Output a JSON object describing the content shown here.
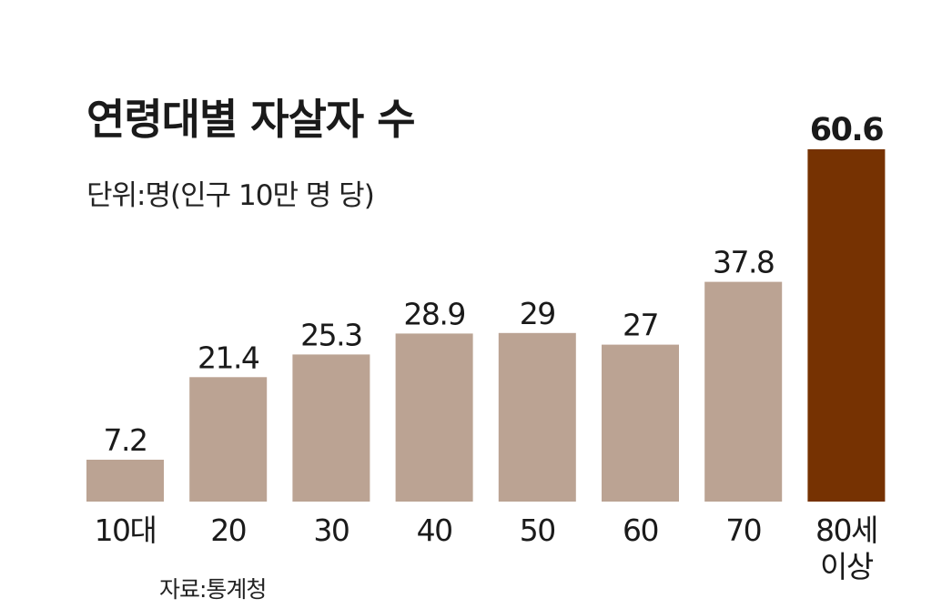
{
  "chart_data": {
    "type": "bar",
    "title": "연령대별 자살자 수",
    "subtitle": "단위:명(인구 10만 명 당)",
    "source": "자료:통계청",
    "categories": [
      [
        "10대"
      ],
      [
        "20"
      ],
      [
        "30"
      ],
      [
        "40"
      ],
      [
        "50"
      ],
      [
        "60"
      ],
      [
        "70"
      ],
      [
        "80세",
        "이상"
      ]
    ],
    "values": [
      7.2,
      21.4,
      25.3,
      28.9,
      29,
      27,
      37.8,
      60.6
    ],
    "value_labels": [
      "7.2",
      "21.4",
      "25.3",
      "28.9",
      "29",
      "27",
      "37.8",
      "60.6"
    ],
    "highlight_index": 7,
    "colors": {
      "bar": "#bba393",
      "highlight": "#763202",
      "text": "#1a1a1a"
    },
    "ylim": [
      0,
      60.6
    ],
    "grid": false,
    "legend": "none"
  }
}
